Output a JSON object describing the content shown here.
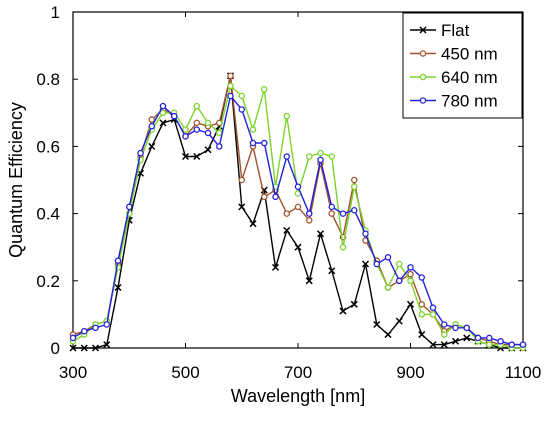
{
  "chart_data": {
    "type": "line",
    "xlabel": "Wavelength [nm]",
    "ylabel": "Quantum Efficiency",
    "xlim": [
      300,
      1100
    ],
    "ylim": [
      0,
      1
    ],
    "x_ticks": [
      300,
      500,
      700,
      900,
      1100
    ],
    "y_ticks": [
      0,
      0.2,
      0.4,
      0.6,
      0.8,
      1
    ],
    "x_tick_labels": [
      "300",
      "500",
      "700",
      "900",
      "1100"
    ],
    "y_tick_labels": [
      "0",
      "0.2",
      "0.4",
      "0.6",
      "0.8",
      "1"
    ],
    "grid": false,
    "legend_position": "top-right",
    "x": [
      300,
      320,
      340,
      360,
      380,
      400,
      420,
      440,
      460,
      480,
      500,
      520,
      540,
      560,
      580,
      600,
      620,
      640,
      660,
      680,
      700,
      720,
      740,
      760,
      780,
      800,
      820,
      840,
      860,
      880,
      900,
      920,
      940,
      960,
      980,
      1000,
      1020,
      1040,
      1060,
      1080,
      1100
    ],
    "series": [
      {
        "name": "Flat",
        "color": "#000000",
        "marker": "x",
        "values": [
          0.0,
          0.0,
          0.0,
          0.01,
          0.18,
          0.38,
          0.52,
          0.6,
          0.67,
          0.68,
          0.57,
          0.57,
          0.59,
          0.66,
          0.81,
          0.42,
          0.37,
          0.47,
          0.24,
          0.35,
          0.3,
          0.2,
          0.34,
          0.23,
          0.11,
          0.13,
          0.25,
          0.07,
          0.04,
          0.08,
          0.13,
          0.04,
          0.01,
          0.01,
          0.02,
          0.03,
          0.02,
          0.01,
          0.0,
          0.0,
          0.0
        ]
      },
      {
        "name": "450 nm",
        "color": "#a0522d",
        "marker": "o",
        "values": [
          0.04,
          0.05,
          0.07,
          0.08,
          0.25,
          0.42,
          0.57,
          0.68,
          0.71,
          0.69,
          0.63,
          0.67,
          0.66,
          0.67,
          0.81,
          0.5,
          0.6,
          0.45,
          0.47,
          0.4,
          0.42,
          0.38,
          0.55,
          0.4,
          0.33,
          0.5,
          0.32,
          0.26,
          0.18,
          0.2,
          0.22,
          0.13,
          0.1,
          0.05,
          0.07,
          0.06,
          0.03,
          0.02,
          0.01,
          0.01,
          0.01
        ]
      },
      {
        "name": "640 nm",
        "color": "#7cd32c",
        "marker": "o",
        "values": [
          0.02,
          0.04,
          0.07,
          0.08,
          0.24,
          0.4,
          0.56,
          0.65,
          0.7,
          0.7,
          0.65,
          0.72,
          0.67,
          0.64,
          0.78,
          0.75,
          0.65,
          0.77,
          0.48,
          0.69,
          0.46,
          0.57,
          0.58,
          0.57,
          0.3,
          0.48,
          0.35,
          0.25,
          0.18,
          0.25,
          0.2,
          0.1,
          0.1,
          0.04,
          0.07,
          0.06,
          0.02,
          0.01,
          0.01,
          0.0,
          0.0
        ]
      },
      {
        "name": "780 nm",
        "color": "#2222dd",
        "marker": "o",
        "values": [
          0.03,
          0.05,
          0.06,
          0.07,
          0.26,
          0.42,
          0.58,
          0.66,
          0.72,
          0.69,
          0.63,
          0.65,
          0.64,
          0.6,
          0.75,
          0.71,
          0.61,
          0.61,
          0.45,
          0.57,
          0.48,
          0.4,
          0.56,
          0.42,
          0.4,
          0.41,
          0.34,
          0.25,
          0.27,
          0.2,
          0.24,
          0.21,
          0.12,
          0.07,
          0.06,
          0.06,
          0.03,
          0.03,
          0.02,
          0.01,
          0.01
        ]
      }
    ]
  }
}
